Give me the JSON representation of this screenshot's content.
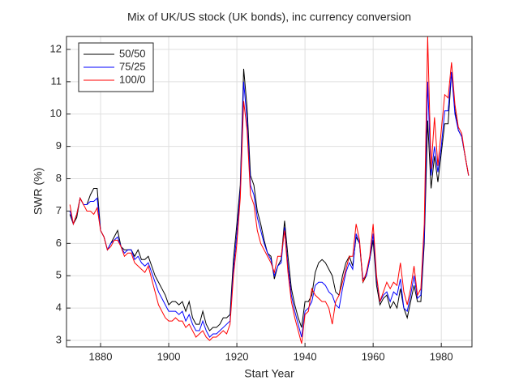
{
  "chart_data": {
    "type": "line",
    "title": "Mix of UK/US stock (UK bonds), inc currency conversion",
    "x_label": "Start Year",
    "y_label": "SWR (%)",
    "x": [
      1871,
      1872,
      1873,
      1874,
      1875,
      1876,
      1877,
      1878,
      1879,
      1880,
      1881,
      1882,
      1883,
      1884,
      1885,
      1886,
      1887,
      1888,
      1889,
      1890,
      1891,
      1892,
      1893,
      1894,
      1895,
      1896,
      1897,
      1898,
      1899,
      1900,
      1901,
      1902,
      1903,
      1904,
      1905,
      1906,
      1907,
      1908,
      1909,
      1910,
      1911,
      1912,
      1913,
      1914,
      1915,
      1916,
      1917,
      1918,
      1919,
      1920,
      1921,
      1922,
      1923,
      1924,
      1925,
      1926,
      1927,
      1928,
      1929,
      1930,
      1931,
      1932,
      1933,
      1934,
      1935,
      1936,
      1937,
      1938,
      1939,
      1940,
      1941,
      1942,
      1943,
      1944,
      1945,
      1946,
      1947,
      1948,
      1949,
      1950,
      1951,
      1952,
      1953,
      1954,
      1955,
      1956,
      1957,
      1958,
      1959,
      1960,
      1961,
      1962,
      1963,
      1964,
      1965,
      1966,
      1967,
      1968,
      1969,
      1970,
      1971,
      1972,
      1973,
      1974,
      1975,
      1976,
      1977,
      1978,
      1979,
      1980,
      1981,
      1982,
      1983,
      1984,
      1985,
      1986,
      1987,
      1988
    ],
    "series": [
      {
        "name": "50/50",
        "color": "#000000",
        "values": [
          6.9,
          6.6,
          6.8,
          7.4,
          7.2,
          7.2,
          7.5,
          7.7,
          7.7,
          6.4,
          6.2,
          5.8,
          6.0,
          6.2,
          6.4,
          5.9,
          5.8,
          5.8,
          5.8,
          5.6,
          5.8,
          5.5,
          5.5,
          5.6,
          5.3,
          5.0,
          4.8,
          4.6,
          4.4,
          4.1,
          4.2,
          4.2,
          4.1,
          4.2,
          3.9,
          4.2,
          3.7,
          3.5,
          3.5,
          3.9,
          3.5,
          3.3,
          3.4,
          3.4,
          3.5,
          3.7,
          3.7,
          3.8,
          5.5,
          6.6,
          7.8,
          11.4,
          10.2,
          8.1,
          7.8,
          7.0,
          6.6,
          6.1,
          5.7,
          5.6,
          4.9,
          5.3,
          5.5,
          6.7,
          5.6,
          4.6,
          4.1,
          3.7,
          3.4,
          4.2,
          4.2,
          4.4,
          5.1,
          5.4,
          5.5,
          5.4,
          5.2,
          5.0,
          4.5,
          4.4,
          5.0,
          5.4,
          5.6,
          5.3,
          6.2,
          6.0,
          4.8,
          5.0,
          5.5,
          6.1,
          4.7,
          4.1,
          4.3,
          4.4,
          4.0,
          4.2,
          4.0,
          4.6,
          4.0,
          3.7,
          4.2,
          4.7,
          4.2,
          4.2,
          6.0,
          9.8,
          7.7,
          8.7,
          7.9,
          8.8,
          9.7,
          9.7,
          11.3,
          10.1,
          9.5,
          9.3,
          8.7,
          8.1
        ]
      },
      {
        "name": "75/25",
        "color": "#0000ff",
        "values": [
          7.0,
          6.6,
          6.9,
          7.4,
          7.2,
          7.2,
          7.3,
          7.3,
          7.4,
          6.4,
          6.2,
          5.8,
          6.0,
          6.1,
          6.2,
          5.9,
          5.7,
          5.8,
          5.8,
          5.5,
          5.6,
          5.4,
          5.3,
          5.4,
          5.1,
          4.8,
          4.5,
          4.3,
          4.1,
          3.9,
          3.9,
          3.9,
          3.8,
          3.9,
          3.6,
          3.8,
          3.5,
          3.3,
          3.3,
          3.6,
          3.3,
          3.1,
          3.2,
          3.2,
          3.3,
          3.4,
          3.5,
          3.6,
          5.2,
          6.3,
          7.6,
          11.0,
          9.8,
          7.8,
          7.5,
          6.8,
          6.4,
          6.0,
          5.7,
          5.5,
          5.0,
          5.3,
          5.4,
          6.5,
          5.3,
          4.4,
          3.9,
          3.5,
          3.1,
          3.9,
          4.0,
          4.2,
          4.7,
          4.8,
          4.8,
          4.7,
          4.5,
          4.4,
          4.1,
          4.0,
          4.6,
          5.1,
          5.4,
          5.2,
          6.3,
          6.0,
          4.9,
          5.0,
          5.5,
          6.3,
          4.9,
          4.2,
          4.4,
          4.5,
          4.2,
          4.5,
          4.4,
          4.9,
          4.0,
          3.9,
          4.4,
          5.0,
          4.3,
          4.4,
          6.2,
          11.0,
          8.1,
          9.0,
          8.2,
          9.0,
          10.1,
          10.1,
          11.3,
          10.0,
          9.5,
          9.3,
          8.7,
          8.1
        ]
      },
      {
        "name": "100/0",
        "color": "#ff0000",
        "values": [
          7.2,
          6.6,
          6.9,
          7.4,
          7.2,
          7.0,
          7.0,
          6.9,
          7.1,
          6.4,
          6.2,
          5.8,
          5.9,
          6.1,
          6.1,
          5.9,
          5.6,
          5.7,
          5.7,
          5.4,
          5.3,
          5.2,
          5.1,
          5.3,
          4.9,
          4.5,
          4.1,
          3.9,
          3.7,
          3.6,
          3.6,
          3.7,
          3.6,
          3.6,
          3.4,
          3.5,
          3.3,
          3.1,
          3.2,
          3.3,
          3.1,
          3.0,
          3.1,
          3.1,
          3.2,
          3.3,
          3.2,
          3.5,
          5.0,
          6.0,
          7.4,
          10.4,
          9.5,
          7.5,
          7.2,
          6.4,
          6.0,
          5.8,
          5.6,
          5.4,
          5.1,
          5.6,
          5.6,
          6.4,
          5.1,
          4.2,
          3.7,
          3.3,
          2.9,
          3.8,
          3.9,
          4.6,
          4.4,
          4.3,
          4.2,
          4.2,
          4.0,
          3.5,
          4.2,
          4.4,
          4.8,
          5.2,
          5.6,
          5.6,
          6.6,
          6.1,
          4.8,
          5.1,
          5.6,
          6.6,
          5.0,
          4.2,
          4.5,
          4.8,
          4.6,
          4.8,
          4.7,
          5.4,
          4.5,
          4.1,
          4.6,
          5.3,
          4.4,
          4.6,
          6.6,
          12.4,
          8.3,
          9.9,
          8.4,
          9.5,
          10.6,
          10.5,
          11.6,
          10.3,
          9.6,
          9.4,
          8.7,
          8.1
        ]
      }
    ],
    "xlim": [
      1870,
      1989
    ],
    "ylim": [
      2.8,
      12.4
    ],
    "xticks": [
      1880,
      1900,
      1920,
      1940,
      1960,
      1980
    ],
    "yticks": [
      3,
      4,
      5,
      6,
      7,
      8,
      9,
      10,
      11,
      12
    ],
    "grid": true,
    "legend": "upper left"
  }
}
